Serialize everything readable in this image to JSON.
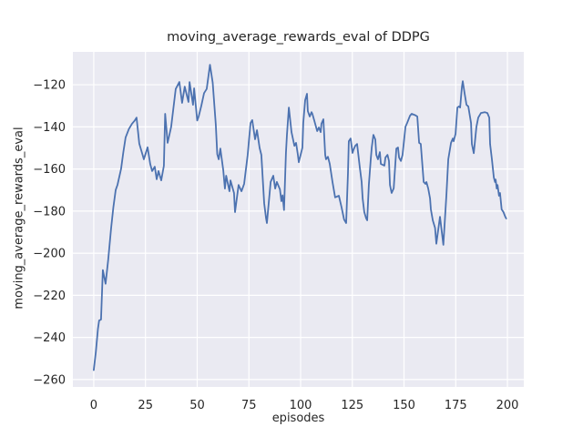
{
  "figure": {
    "title": "moving_average_rewards_eval of DDPG",
    "xlabel": "episodes",
    "ylabel": "moving_average_rewards_eval"
  },
  "colors": {
    "line": "#4c72b0",
    "plot_background": "#eaeaf2",
    "grid": "#ffffff",
    "text": "#262626",
    "figure_background": "#ffffff"
  },
  "chart_data": {
    "type": "line",
    "title": "moving_average_rewards_eval of DDPG",
    "xlabel": "episodes",
    "ylabel": "moving_average_rewards_eval",
    "grid": true,
    "legend": "none",
    "xlim": [
      -10.1,
      207.9
    ],
    "ylim": [
      -263.5,
      -104.4
    ],
    "x_ticks": [
      {
        "v": 0,
        "label": "0"
      },
      {
        "v": 25,
        "label": "25"
      },
      {
        "v": 50,
        "label": "50"
      },
      {
        "v": 75,
        "label": "75"
      },
      {
        "v": 100,
        "label": "100"
      },
      {
        "v": 125,
        "label": "125"
      },
      {
        "v": 150,
        "label": "150"
      },
      {
        "v": 175,
        "label": "175"
      },
      {
        "v": 200,
        "label": "200"
      }
    ],
    "y_ticks": [
      {
        "v": -120,
        "label": "−120"
      },
      {
        "v": -140,
        "label": "−140"
      },
      {
        "v": -160,
        "label": "−160"
      },
      {
        "v": -180,
        "label": "−180"
      },
      {
        "v": -200,
        "label": "−200"
      },
      {
        "v": -220,
        "label": "−220"
      },
      {
        "v": -240,
        "label": "−240"
      },
      {
        "v": -260,
        "label": "−260"
      }
    ],
    "series": [
      {
        "name": "moving_average_rewards_eval",
        "color": "#4c72b0",
        "points": [
          [
            0,
            -255.5
          ],
          [
            1,
            -247
          ],
          [
            2,
            -236
          ],
          [
            2.6,
            -232
          ],
          [
            3.5,
            -231.5
          ],
          [
            4.4,
            -208
          ],
          [
            5.7,
            -214.5
          ],
          [
            7,
            -203
          ],
          [
            8.4,
            -188
          ],
          [
            9.5,
            -178
          ],
          [
            10.6,
            -170
          ],
          [
            11.5,
            -167.5
          ],
          [
            13.2,
            -160
          ],
          [
            14.3,
            -152
          ],
          [
            15.4,
            -145
          ],
          [
            17,
            -141
          ],
          [
            18.5,
            -138.5
          ],
          [
            19.8,
            -137
          ],
          [
            20.7,
            -135.6
          ],
          [
            22,
            -148
          ],
          [
            23.8,
            -154
          ],
          [
            24.2,
            -155.4
          ],
          [
            26,
            -149.7
          ],
          [
            27.3,
            -157.6
          ],
          [
            28.2,
            -161
          ],
          [
            29.5,
            -158.9
          ],
          [
            30.4,
            -164.9
          ],
          [
            31.3,
            -161
          ],
          [
            32.6,
            -165.4
          ],
          [
            33.9,
            -158.5
          ],
          [
            34.5,
            -133.8
          ],
          [
            35.7,
            -147.6
          ],
          [
            37.4,
            -140
          ],
          [
            39.6,
            -122
          ],
          [
            41.4,
            -118.7
          ],
          [
            42.7,
            -128.6
          ],
          [
            44,
            -120.9
          ],
          [
            45.8,
            -128.2
          ],
          [
            46.3,
            -118.7
          ],
          [
            48,
            -129.5
          ],
          [
            48.5,
            -121.7
          ],
          [
            50,
            -137
          ],
          [
            50.7,
            -135.1
          ],
          [
            52,
            -130
          ],
          [
            53.3,
            -124
          ],
          [
            54.6,
            -122
          ],
          [
            56.2,
            -110.5
          ],
          [
            57.5,
            -119
          ],
          [
            59,
            -139
          ],
          [
            59.7,
            -153
          ],
          [
            60.4,
            -155.4
          ],
          [
            61.2,
            -150.3
          ],
          [
            62.6,
            -160.6
          ],
          [
            63.4,
            -169.3
          ],
          [
            64,
            -163.2
          ],
          [
            65.6,
            -170.6
          ],
          [
            66.1,
            -165.4
          ],
          [
            67.8,
            -171.4
          ],
          [
            68.3,
            -180.5
          ],
          [
            70,
            -167.6
          ],
          [
            71.4,
            -170.6
          ],
          [
            72.7,
            -167.1
          ],
          [
            74.4,
            -153.3
          ],
          [
            75.8,
            -138.2
          ],
          [
            76.6,
            -136.8
          ],
          [
            78,
            -145.9
          ],
          [
            78.9,
            -141.6
          ],
          [
            80.2,
            -150
          ],
          [
            81,
            -153.3
          ],
          [
            82.4,
            -176.2
          ],
          [
            83.3,
            -183.5
          ],
          [
            83.7,
            -185.7
          ],
          [
            85.5,
            -166.2
          ],
          [
            86.8,
            -163.2
          ],
          [
            87.7,
            -169.3
          ],
          [
            88.5,
            -166.2
          ],
          [
            90,
            -169.7
          ],
          [
            90.7,
            -175.3
          ],
          [
            91.3,
            -172.5
          ],
          [
            92,
            -179.5
          ],
          [
            92.9,
            -152.4
          ],
          [
            93.4,
            -143.8
          ],
          [
            94.3,
            -130.8
          ],
          [
            95.6,
            -142.5
          ],
          [
            97,
            -149
          ],
          [
            97.8,
            -147.6
          ],
          [
            98.7,
            -153.3
          ],
          [
            99.1,
            -156.8
          ],
          [
            100.9,
            -149.8
          ],
          [
            101.3,
            -138.2
          ],
          [
            102.2,
            -127.3
          ],
          [
            103.1,
            -124.3
          ],
          [
            103.5,
            -132.5
          ],
          [
            104.4,
            -135.1
          ],
          [
            105.3,
            -133
          ],
          [
            105.7,
            -133.8
          ],
          [
            106.6,
            -137
          ],
          [
            108,
            -142
          ],
          [
            108.8,
            -140.3
          ],
          [
            109.7,
            -142.5
          ],
          [
            110.1,
            -138.5
          ],
          [
            111,
            -136.4
          ],
          [
            111.9,
            -153.3
          ],
          [
            112.3,
            -155.4
          ],
          [
            113.2,
            -154.2
          ],
          [
            114.1,
            -157.6
          ],
          [
            115.4,
            -166.2
          ],
          [
            116.7,
            -173.5
          ],
          [
            118.5,
            -172.7
          ],
          [
            119.8,
            -178.3
          ],
          [
            121,
            -184
          ],
          [
            122,
            -185.7
          ],
          [
            122.9,
            -161.9
          ],
          [
            123.3,
            -146.8
          ],
          [
            124.2,
            -145.5
          ],
          [
            125.1,
            -152.4
          ],
          [
            125.5,
            -151.1
          ],
          [
            126.4,
            -149
          ],
          [
            127.3,
            -148.1
          ],
          [
            128.6,
            -158.9
          ],
          [
            129.5,
            -166.2
          ],
          [
            130,
            -174
          ],
          [
            130.8,
            -180.5
          ],
          [
            131.7,
            -183.5
          ],
          [
            132.2,
            -184.4
          ],
          [
            133,
            -167.6
          ],
          [
            133.9,
            -155.4
          ],
          [
            134.4,
            -149.8
          ],
          [
            135.2,
            -143.8
          ],
          [
            136.1,
            -146
          ],
          [
            136.6,
            -153.3
          ],
          [
            137.4,
            -155.4
          ],
          [
            138.3,
            -152
          ],
          [
            138.8,
            -157.6
          ],
          [
            140.5,
            -158.4
          ],
          [
            141,
            -154.6
          ],
          [
            142,
            -153.3
          ],
          [
            142.7,
            -156.2
          ],
          [
            143.2,
            -167.6
          ],
          [
            144,
            -171.4
          ],
          [
            145,
            -169.2
          ],
          [
            146.3,
            -150.3
          ],
          [
            147.1,
            -149.8
          ],
          [
            147.6,
            -154.6
          ],
          [
            148.5,
            -156.2
          ],
          [
            149.3,
            -153.3
          ],
          [
            150.7,
            -140
          ],
          [
            151.5,
            -138.2
          ],
          [
            152.9,
            -134.7
          ],
          [
            153.7,
            -133.8
          ],
          [
            155.5,
            -134.5
          ],
          [
            156.4,
            -135.1
          ],
          [
            157.3,
            -147.6
          ],
          [
            158.1,
            -148.1
          ],
          [
            159.5,
            -166.2
          ],
          [
            160.4,
            -167.1
          ],
          [
            160.8,
            -166.2
          ],
          [
            161.7,
            -169.3
          ],
          [
            162.6,
            -174
          ],
          [
            163,
            -179.2
          ],
          [
            163.9,
            -184.4
          ],
          [
            165,
            -188
          ],
          [
            165.6,
            -195.5
          ],
          [
            167.4,
            -182.7
          ],
          [
            169,
            -196
          ],
          [
            170.5,
            -172
          ],
          [
            171.4,
            -155.4
          ],
          [
            172.7,
            -147.6
          ],
          [
            173.6,
            -145.5
          ],
          [
            174,
            -146.8
          ],
          [
            174.9,
            -143.3
          ],
          [
            175.8,
            -130.8
          ],
          [
            176.6,
            -130.3
          ],
          [
            177.1,
            -130.8
          ],
          [
            178,
            -120.9
          ],
          [
            178.4,
            -118.3
          ],
          [
            179.3,
            -124.3
          ],
          [
            180.2,
            -129.5
          ],
          [
            181.1,
            -130.3
          ],
          [
            182.4,
            -138.2
          ],
          [
            182.8,
            -148.1
          ],
          [
            183.7,
            -152.5
          ],
          [
            185,
            -140
          ],
          [
            185.9,
            -135.6
          ],
          [
            187.2,
            -133.4
          ],
          [
            189,
            -133
          ],
          [
            190.3,
            -133.4
          ],
          [
            191.2,
            -135.6
          ],
          [
            191.6,
            -148.1
          ],
          [
            192.5,
            -155.4
          ],
          [
            193.4,
            -164
          ],
          [
            194,
            -166.2
          ],
          [
            194.3,
            -165
          ],
          [
            194.8,
            -169.3
          ],
          [
            195.2,
            -167.6
          ],
          [
            195.9,
            -172.7
          ],
          [
            196.4,
            -171.4
          ],
          [
            197.2,
            -179.2
          ],
          [
            198.1,
            -180.5
          ],
          [
            198.9,
            -182.6
          ],
          [
            199.4,
            -183.5
          ]
        ]
      }
    ]
  }
}
